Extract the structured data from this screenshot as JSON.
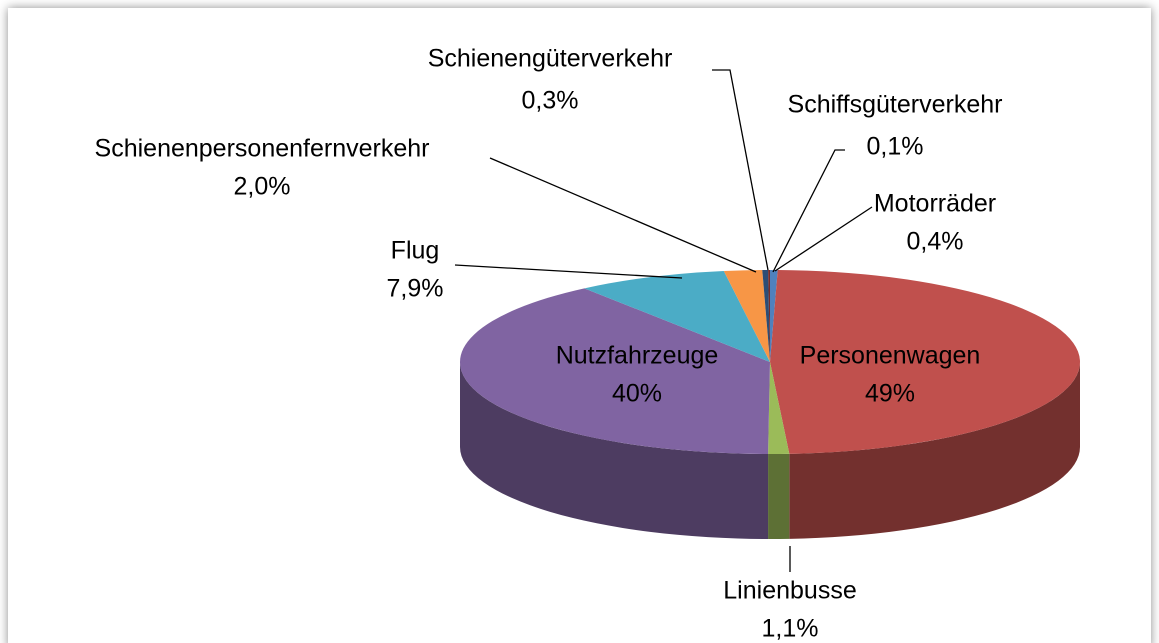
{
  "chart_data": {
    "type": "pie3d",
    "categories": [
      "Motorräder",
      "Personenwagen",
      "Linienbusse",
      "Nutzfahrzeuge",
      "Flug",
      "Schienenpersonenfernverkehr",
      "Schienengüterverkehr",
      "Schiffsgüterverkehr"
    ],
    "values": [
      0.4,
      49,
      1.1,
      40,
      7.9,
      2.0,
      0.3,
      0.1
    ],
    "value_labels": [
      "0,4%",
      "49%",
      "1,1%",
      "40%",
      "7,9%",
      "2,0%",
      "0,3%",
      "0,1%"
    ],
    "colors": [
      "#4f81bd",
      "#c0504d",
      "#9bbb59",
      "#8064a2",
      "#4bacc6",
      "#f79646",
      "#2c4d75",
      "#772c2a"
    ]
  }
}
